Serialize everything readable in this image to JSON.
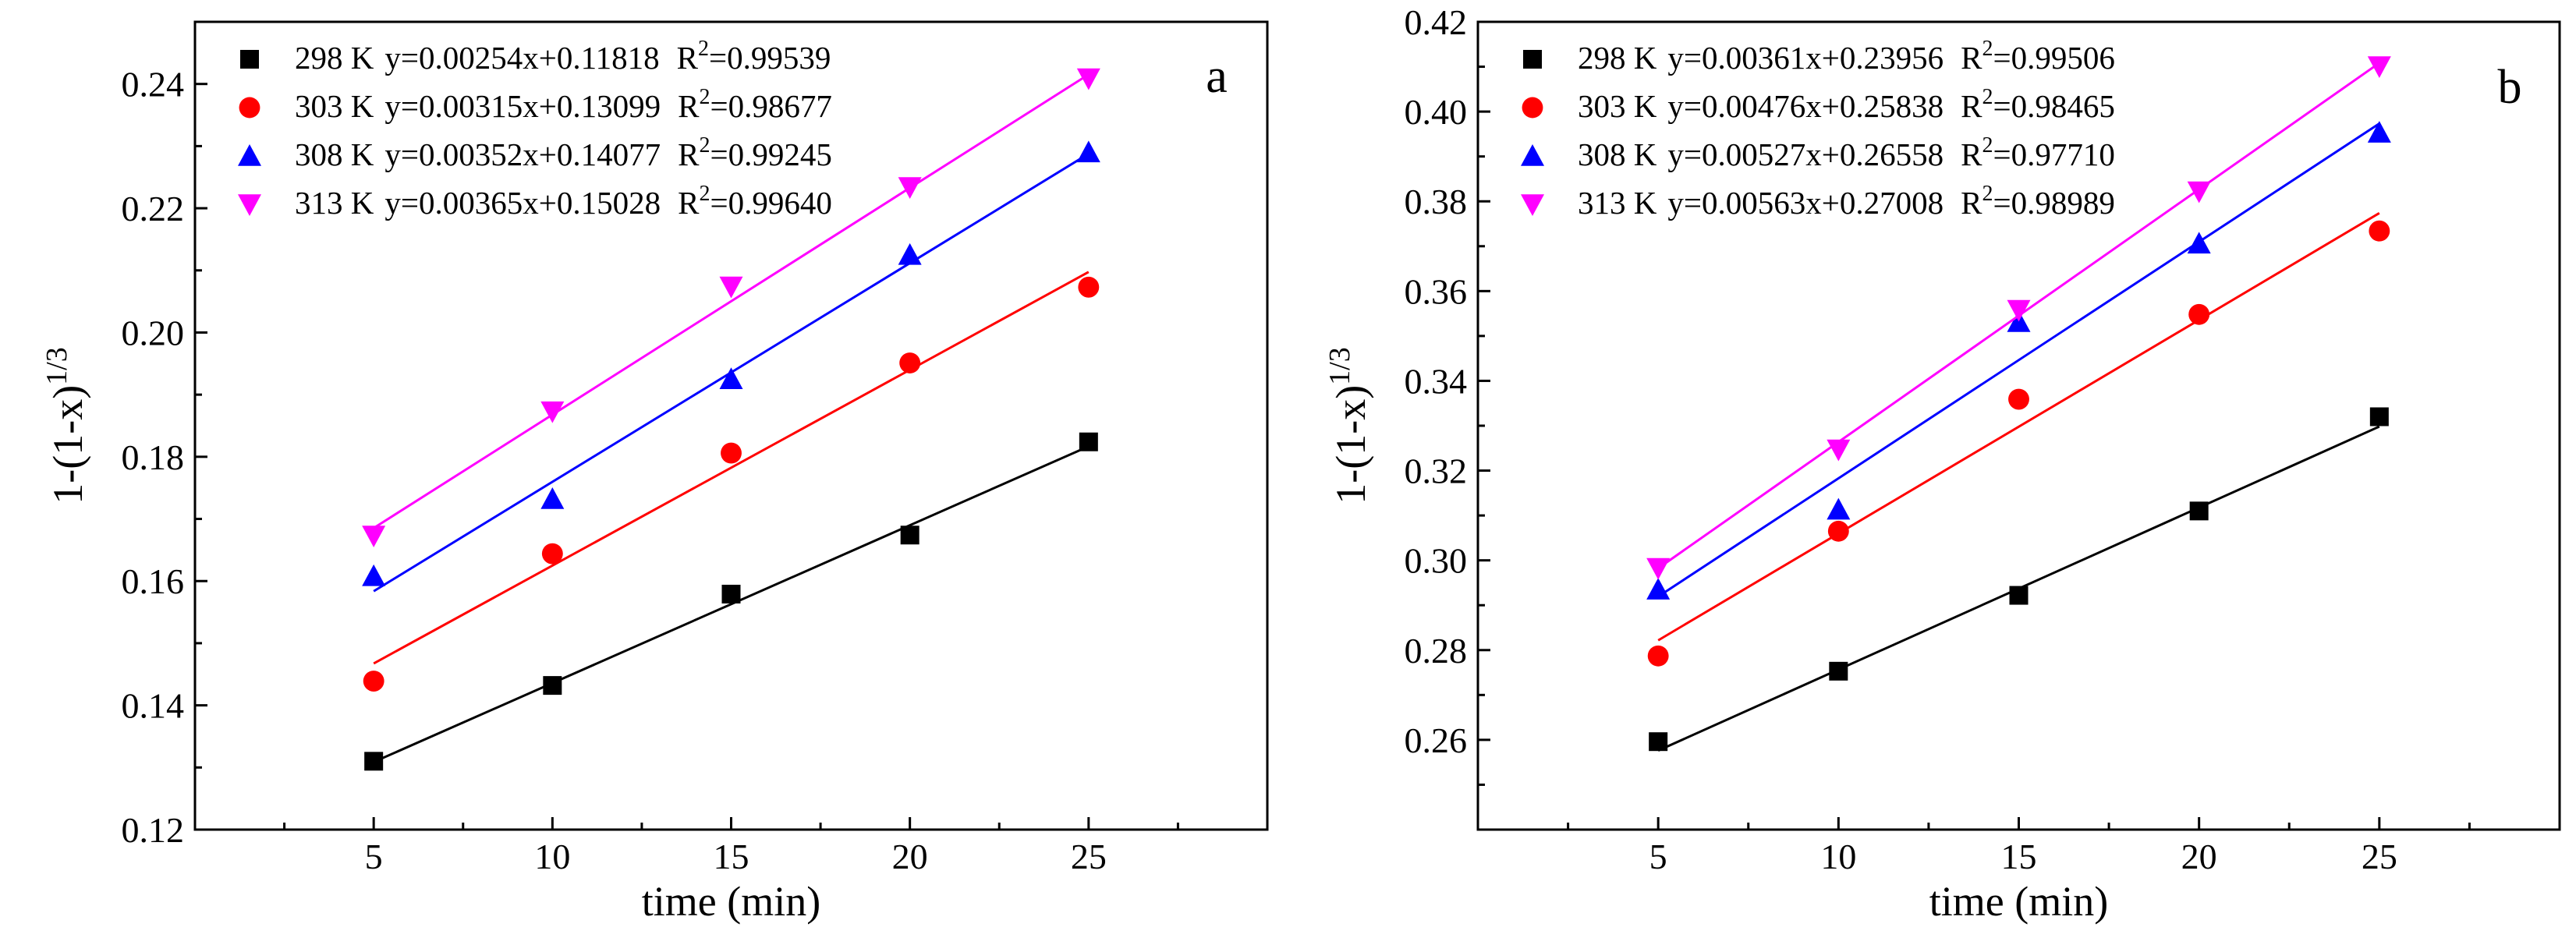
{
  "colors": {
    "298 K": "#000000",
    "303 K": "#ff0000",
    "308 K": "#0000ff",
    "313 K": "#ff00ff"
  },
  "chart_data": [
    {
      "type": "scatter",
      "panel_label": "a",
      "xlabel": "time (min)",
      "ylabel_base": "1-(1-x)",
      "ylabel_exp": "1/3",
      "xlim": [
        0,
        30
      ],
      "ylim": [
        0.12,
        0.25
      ],
      "xticks": [
        5,
        10,
        15,
        20,
        25
      ],
      "yticks": [
        0.12,
        0.14,
        0.16,
        0.18,
        0.2,
        0.22,
        0.24
      ],
      "ytick_labels": [
        "0.12",
        "0.14",
        "0.16",
        "0.18",
        "0.20",
        "0.22",
        "0.24"
      ],
      "legend_position": "top-left",
      "series": [
        {
          "name": "298 K",
          "marker": "square",
          "x": [
            5,
            10,
            15,
            20,
            25
          ],
          "y": [
            0.131,
            0.1432,
            0.1579,
            0.1674,
            0.1824
          ],
          "fit_slope": 0.00254,
          "fit_intercept": 0.11818,
          "equation": "y=0.00254x+0.11818",
          "r2_label": "R",
          "r2_value": "=0.99539"
        },
        {
          "name": "303 K",
          "marker": "circle",
          "x": [
            5,
            10,
            15,
            20,
            25
          ],
          "y": [
            0.1439,
            0.1644,
            0.1806,
            0.1951,
            0.2073
          ],
          "fit_slope": 0.00315,
          "fit_intercept": 0.13099,
          "equation": "y=0.00315x+0.13099",
          "r2_label": "R",
          "r2_value": "=0.98677"
        },
        {
          "name": "308 K",
          "marker": "triangle-up",
          "x": [
            5,
            10,
            15,
            20,
            25
          ],
          "y": [
            0.1608,
            0.1732,
            0.1925,
            0.2125,
            0.229
          ],
          "fit_slope": 0.00352,
          "fit_intercept": 0.14077,
          "equation": "y=0.00352x+0.14077",
          "r2_label": "R",
          "r2_value": "=0.99245"
        },
        {
          "name": "313 K",
          "marker": "triangle-down",
          "x": [
            5,
            10,
            15,
            20,
            25
          ],
          "y": [
            0.1673,
            0.1873,
            0.2074,
            0.2234,
            0.2409
          ],
          "fit_slope": 0.00365,
          "fit_intercept": 0.15028,
          "equation": "y=0.00365x+0.15028",
          "r2_label": "R",
          "r2_value": "=0.99640"
        }
      ]
    },
    {
      "type": "scatter",
      "panel_label": "b",
      "xlabel": "time (min)",
      "ylabel_base": "1-(1-x)",
      "ylabel_exp": "1/3",
      "xlim": [
        0,
        30
      ],
      "ylim": [
        0.24,
        0.42
      ],
      "xticks": [
        5,
        10,
        15,
        20,
        25
      ],
      "yticks": [
        0.26,
        0.28,
        0.3,
        0.32,
        0.34,
        0.36,
        0.38,
        0.4,
        0.42
      ],
      "ytick_labels": [
        "0.26",
        "0.28",
        "0.30",
        "0.32",
        "0.34",
        "0.36",
        "0.38",
        "0.40",
        "0.42"
      ],
      "legend_position": "top-left",
      "series": [
        {
          "name": "298 K",
          "marker": "square",
          "x": [
            5,
            10,
            15,
            20,
            25
          ],
          "y": [
            0.2596,
            0.2753,
            0.2922,
            0.311,
            0.332
          ],
          "fit_slope": 0.00361,
          "fit_intercept": 0.23956,
          "equation": "y=0.00361x+0.23956",
          "r2_label": "R",
          "r2_value": "=0.99506"
        },
        {
          "name": "303 K",
          "marker": "circle",
          "x": [
            5,
            10,
            15,
            20,
            25
          ],
          "y": [
            0.2787,
            0.3065,
            0.3359,
            0.3548,
            0.3734
          ],
          "fit_slope": 0.00476,
          "fit_intercept": 0.25838,
          "equation": "y=0.00476x+0.25838",
          "r2_label": "R",
          "r2_value": "=0.98465"
        },
        {
          "name": "308 K",
          "marker": "triangle-up",
          "x": [
            5,
            10,
            15,
            20,
            25
          ],
          "y": [
            0.2935,
            0.3113,
            0.3531,
            0.3706,
            0.3953
          ],
          "fit_slope": 0.00527,
          "fit_intercept": 0.26558,
          "equation": "y=0.00527x+0.26558",
          "r2_label": "R",
          "r2_value": "=0.97710"
        },
        {
          "name": "313 K",
          "marker": "triangle-down",
          "x": [
            5,
            10,
            15,
            20,
            25
          ],
          "y": [
            0.2983,
            0.3247,
            0.3558,
            0.3822,
            0.4101
          ],
          "fit_slope": 0.00563,
          "fit_intercept": 0.27008,
          "equation": "y=0.00563x+0.27008",
          "r2_label": "R",
          "r2_value": "=0.98989"
        }
      ]
    }
  ]
}
